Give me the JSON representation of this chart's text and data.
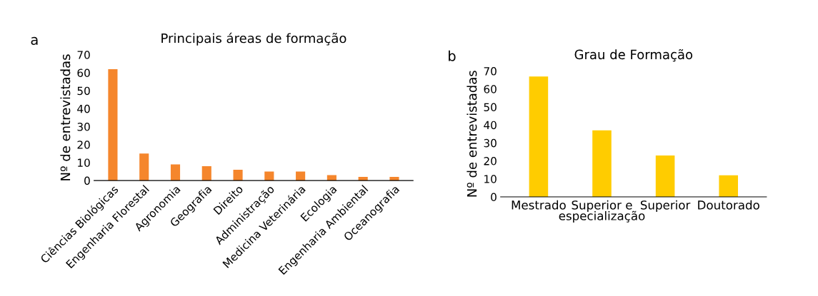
{
  "chart_data": [
    {
      "type": "bar",
      "title": "Principais áreas de formação",
      "ylabel": "Nº de entrevistadas",
      "annotations": [
        "a"
      ],
      "categories": [
        "Ciências Biológicas",
        "Engenharia Florestal",
        "Agronomia",
        "Geografia",
        "Direito",
        "Administração",
        "Medicina Veterinária",
        "Ecologia",
        "Engenharia Ambiental",
        "Oceanografia"
      ],
      "values": [
        62,
        15,
        9,
        8,
        6,
        5,
        5,
        3,
        2,
        2
      ],
      "color": "#f5862c",
      "ylim": [
        0,
        70
      ],
      "yticks": [
        0,
        10,
        20,
        30,
        40,
        50,
        60,
        70
      ],
      "grid": false,
      "legend": false
    },
    {
      "type": "bar",
      "title": "Grau de Formação",
      "ylabel": "Nº de entrevistadas",
      "annotations": [
        "b"
      ],
      "categories": [
        "Mestrado",
        "Superior e\nespecialização",
        "Superior",
        "Doutorado"
      ],
      "values": [
        67,
        37,
        23,
        12
      ],
      "color": "#ffcc00",
      "ylim": [
        0,
        70
      ],
      "yticks": [
        0,
        10,
        20,
        30,
        40,
        50,
        60,
        70
      ],
      "grid": false,
      "legend": false
    }
  ]
}
